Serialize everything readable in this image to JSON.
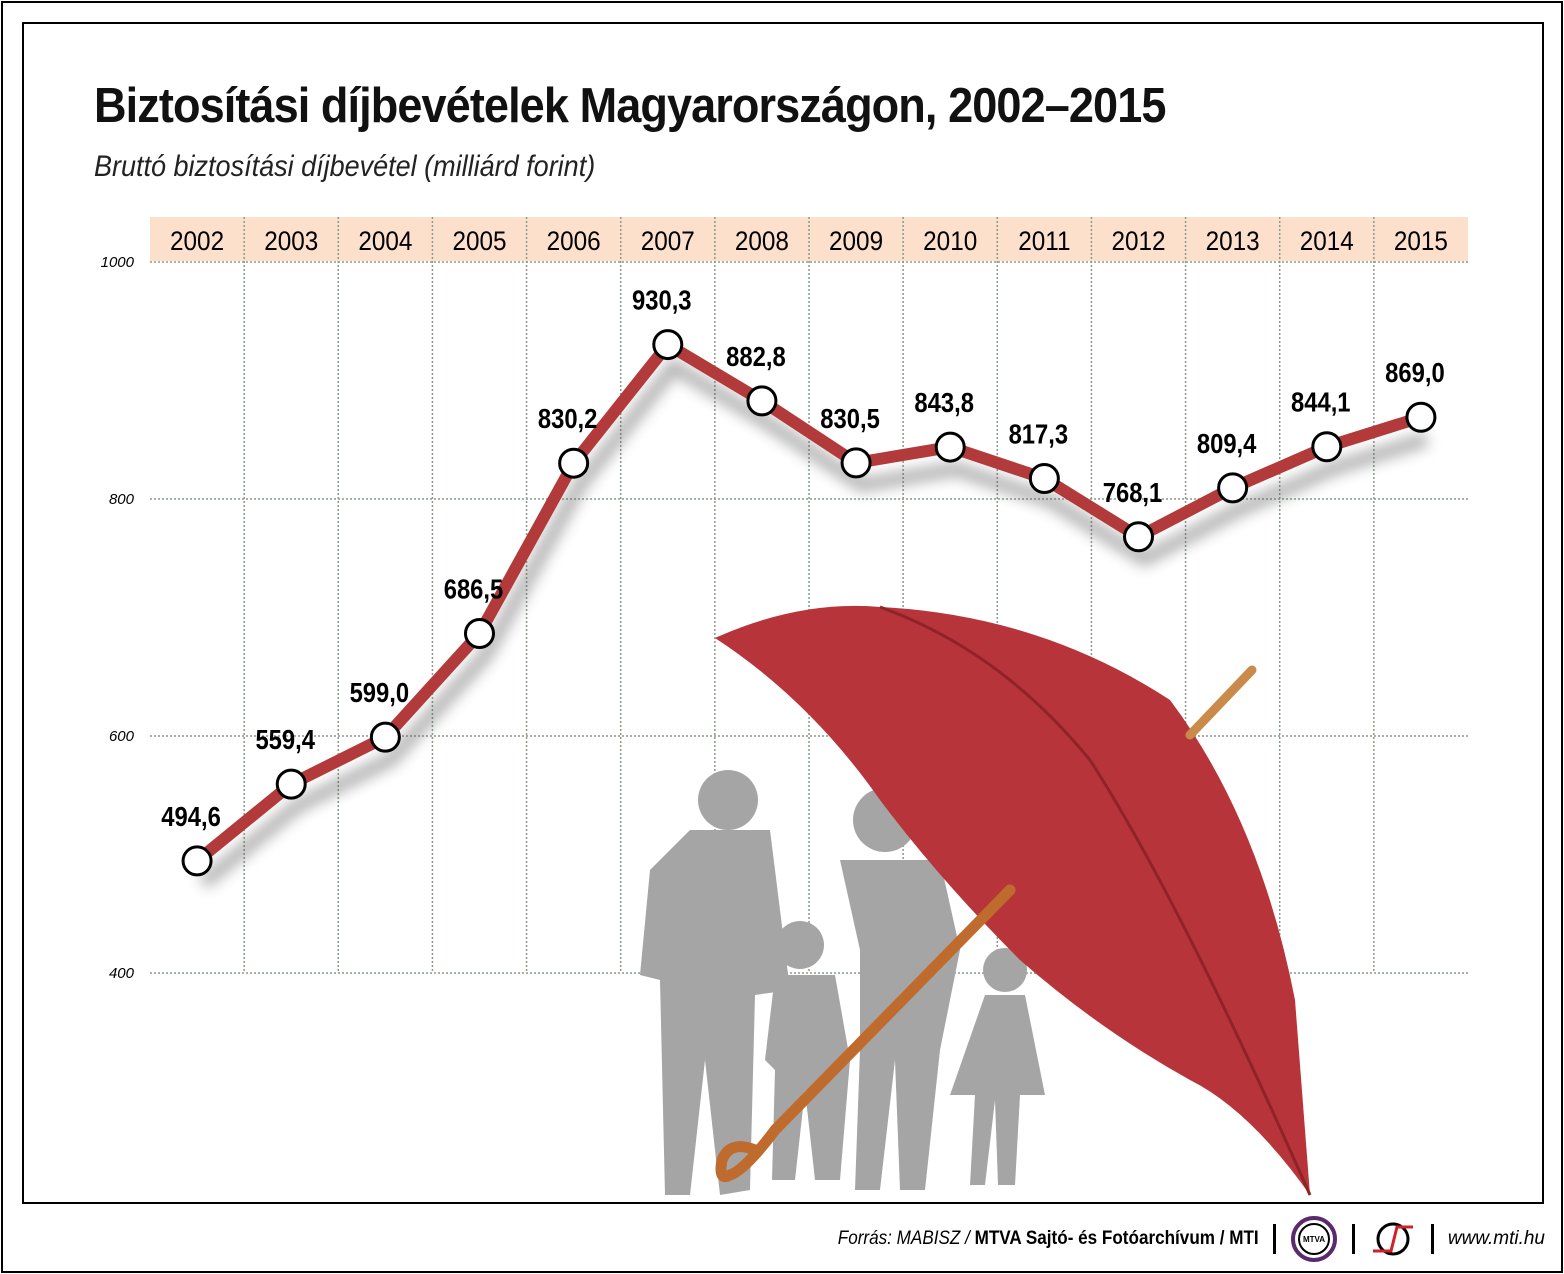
{
  "title": "Biztosítási díjbevételek Magyarországon, 2002–2015",
  "subtitle": "Bruttó biztosítási díjbevétel (milliárd forint)",
  "chart_data": {
    "type": "line",
    "title": "Biztosítási díjbevételek Magyarországon, 2002–2015",
    "ylabel": "Bruttó biztosítási díjbevétel (milliárd forint)",
    "categories": [
      "2002",
      "2003",
      "2004",
      "2005",
      "2006",
      "2007",
      "2008",
      "2009",
      "2010",
      "2011",
      "2012",
      "2013",
      "2014",
      "2015"
    ],
    "values": [
      494.6,
      559.4,
      599.0,
      686.5,
      830.2,
      930.3,
      882.8,
      830.5,
      843.8,
      817.3,
      768.1,
      809.4,
      844.1,
      869.0
    ],
    "value_labels": [
      "494,6",
      "559,4",
      "599,0",
      "686,5",
      "830,2",
      "930,3",
      "882,8",
      "830,5",
      "843,8",
      "817,3",
      "768,1",
      "809,4",
      "844,1",
      "869,0"
    ],
    "yticks": [
      "400",
      "600",
      "800",
      "1000"
    ],
    "ylim": [
      400,
      1000
    ],
    "grid": true,
    "colors": {
      "line": "#b23a3a",
      "header_band": "#fce0cc",
      "marker_fill": "#ffffff"
    }
  },
  "footer": {
    "source_prefix": "Forrás: MABISZ / ",
    "source_bold": "MTVA Sajtó- és Fotóarchívum / MTI",
    "logo1_text": "MTVA",
    "url": "www.mti.hu"
  }
}
